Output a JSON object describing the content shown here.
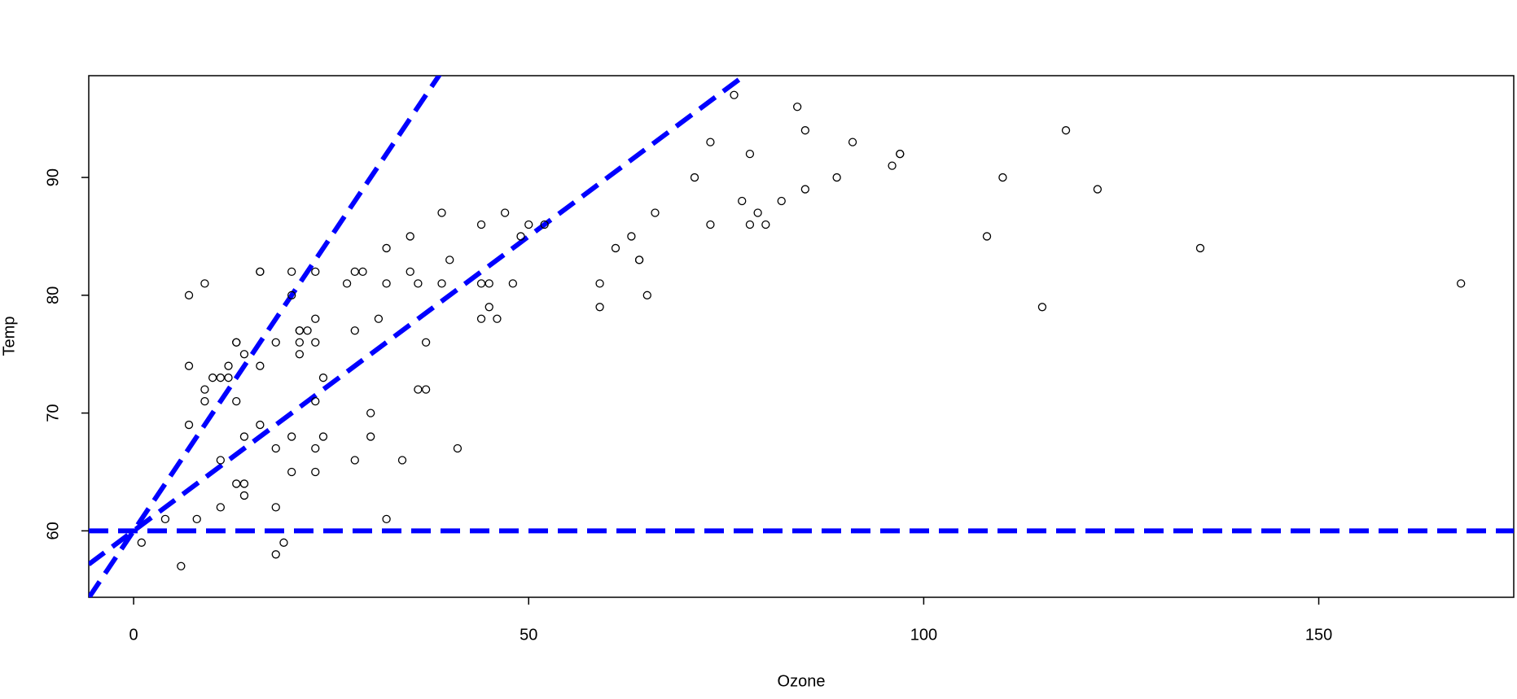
{
  "chart_data": {
    "type": "scatter",
    "x_label": "Ozone",
    "y_label": "Temp",
    "x": [
      41,
      36,
      12,
      18,
      28,
      23,
      19,
      8,
      7,
      16,
      11,
      14,
      18,
      14,
      34,
      6,
      30,
      11,
      1,
      11,
      4,
      32,
      23,
      45,
      115,
      37,
      29,
      71,
      39,
      23,
      21,
      37,
      20,
      12,
      13,
      135,
      49,
      32,
      64,
      40,
      77,
      97,
      97,
      85,
      10,
      27,
      7,
      48,
      35,
      61,
      79,
      63,
      16,
      80,
      108,
      20,
      52,
      82,
      50,
      64,
      59,
      39,
      9,
      16,
      78,
      35,
      66,
      122,
      89,
      110,
      44,
      28,
      65,
      22,
      59,
      23,
      31,
      44,
      21,
      9,
      45,
      168,
      73,
      76,
      118,
      84,
      85,
      96,
      78,
      73,
      91,
      47,
      32,
      20,
      23,
      21,
      24,
      44,
      21,
      28,
      9,
      13,
      46,
      18,
      13,
      24,
      16,
      13,
      23,
      36,
      7,
      14,
      30,
      14,
      18,
      20
    ],
    "y": [
      67,
      72,
      74,
      62,
      66,
      65,
      59,
      61,
      74,
      69,
      66,
      68,
      58,
      64,
      66,
      57,
      68,
      62,
      59,
      73,
      61,
      61,
      67,
      81,
      79,
      76,
      82,
      90,
      87,
      82,
      77,
      72,
      65,
      73,
      76,
      84,
      85,
      81,
      83,
      83,
      88,
      92,
      92,
      89,
      73,
      81,
      80,
      81,
      82,
      84,
      87,
      85,
      74,
      86,
      85,
      82,
      86,
      88,
      86,
      83,
      81,
      81,
      81,
      82,
      86,
      85,
      87,
      89,
      90,
      90,
      86,
      82,
      80,
      77,
      79,
      76,
      78,
      78,
      77,
      72,
      79,
      81,
      86,
      97,
      94,
      96,
      94,
      91,
      92,
      93,
      93,
      87,
      84,
      80,
      78,
      75,
      73,
      81,
      76,
      77,
      71,
      71,
      78,
      67,
      76,
      68,
      82,
      64,
      71,
      81,
      69,
      63,
      70,
      75,
      76,
      68
    ],
    "point_color": "#000000",
    "ablines": [
      {
        "intercept": 60,
        "slope": 0
      },
      {
        "intercept": 60,
        "slope": 0.5
      },
      {
        "intercept": 60,
        "slope": 1
      }
    ],
    "line_color": "#0000ff",
    "xlim": [
      -5.68,
      174.68
    ],
    "ylim": [
      54.36,
      98.64
    ],
    "xticks": [
      0,
      50,
      100,
      150
    ],
    "yticks": [
      60,
      70,
      80,
      90
    ]
  }
}
